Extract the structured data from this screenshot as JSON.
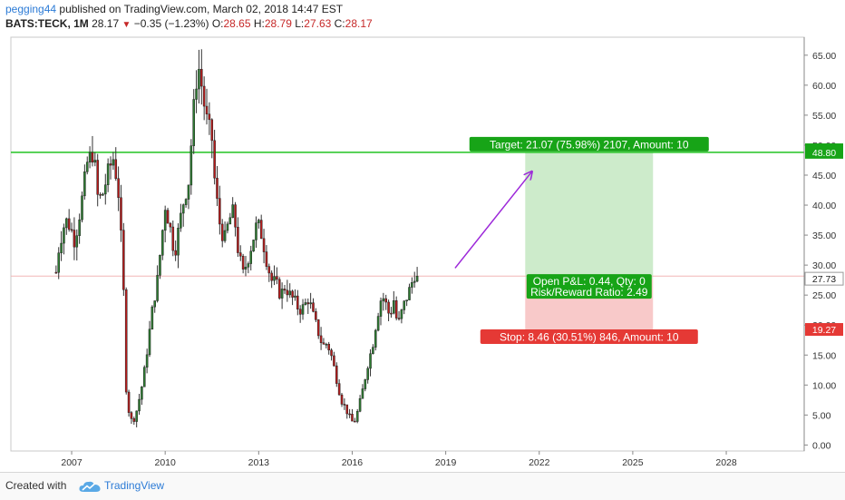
{
  "header": {
    "author": "pegging44",
    "published": "published on TradingView.com, March 02, 2018 14:47 EST",
    "symbol": "BATS:TECK, 1M",
    "last": "28.17",
    "change": "−0.35 (−1.23%)",
    "open_label": "O:",
    "open": "28.65",
    "high_label": "H:",
    "high": "28.79",
    "low_label": "L:",
    "low": "27.63",
    "close_label": "C:",
    "close": "28.17"
  },
  "colors": {
    "up": "#2e7d32",
    "down": "#b71c1c",
    "target_line": "#22c322",
    "target_zone": "#cdebcb",
    "stop_zone": "#f8c9c9",
    "current_line": "#f2b5b5",
    "arrow": "#9c27d9",
    "badge_green": "#17a417",
    "badge_red": "#e53935",
    "accent": "#2c7bd6"
  },
  "chart_data": {
    "type": "candlestick",
    "x_ticks": [
      "2007",
      "2010",
      "2013",
      "2016",
      "2019",
      "2022",
      "2025",
      "2028"
    ],
    "y_ticks": [
      "0.00",
      "5.00",
      "10.00",
      "15.00",
      "20.00",
      "25.00",
      "30.00",
      "35.00",
      "40.00",
      "45.00",
      "50.00",
      "55.00",
      "60.00",
      "65.00"
    ],
    "ylim": [
      -1,
      68
    ],
    "xlim": [
      2005.05,
      2030.5
    ],
    "price_badges": [
      {
        "value": "49.23",
        "y": 49.23,
        "kind": "green"
      },
      {
        "value": "48.80",
        "y": 48.8,
        "kind": "green"
      },
      {
        "value": "27.73",
        "y": 27.73,
        "kind": "current"
      },
      {
        "value": "19.27",
        "y": 19.27,
        "kind": "red"
      }
    ],
    "horizontal_line": 48.8,
    "current_price": 28.17,
    "position": {
      "x_start": 2021.55,
      "x_end": 2025.65,
      "entry": 27.73,
      "target": 48.8,
      "stop": 19.27,
      "target_label": "Target: 21.07 (75.98%) 2107, Amount: 10",
      "stop_label": "Stop: 8.46 (30.51%) 846, Amount: 10",
      "pnl_label": "Open P&L: 0.44, Qty: 0",
      "rr_label": "Risk/Reward Ratio: 2.49"
    },
    "arrow": {
      "from": [
        2019.3,
        29.5
      ],
      "to": [
        2021.75,
        45.5
      ]
    },
    "anchors": [
      [
        2006.5,
        28.8
      ],
      [
        2006.6,
        33.5
      ],
      [
        2006.8,
        37.5
      ],
      [
        2006.95,
        36.5
      ],
      [
        2007.1,
        34.0
      ],
      [
        2007.35,
        41.5
      ],
      [
        2007.5,
        47.0
      ],
      [
        2007.7,
        49.0
      ],
      [
        2007.85,
        40.5
      ],
      [
        2008.0,
        42.0
      ],
      [
        2008.2,
        46.0
      ],
      [
        2008.35,
        48.0
      ],
      [
        2008.5,
        42.0
      ],
      [
        2008.65,
        28.5
      ],
      [
        2008.75,
        9.5
      ],
      [
        2008.85,
        5.0
      ],
      [
        2008.95,
        3.7
      ],
      [
        2009.1,
        6.0
      ],
      [
        2009.3,
        11.0
      ],
      [
        2009.45,
        17.0
      ],
      [
        2009.6,
        23.0
      ],
      [
        2009.75,
        27.5
      ],
      [
        2009.9,
        35.0
      ],
      [
        2010.0,
        40.0
      ],
      [
        2010.15,
        36.5
      ],
      [
        2010.3,
        32.0
      ],
      [
        2010.45,
        36.5
      ],
      [
        2010.6,
        41.0
      ],
      [
        2010.75,
        44.0
      ],
      [
        2010.9,
        55.0
      ],
      [
        2011.0,
        61.0
      ],
      [
        2011.1,
        63.0
      ],
      [
        2011.2,
        58.5
      ],
      [
        2011.35,
        53.5
      ],
      [
        2011.5,
        51.0
      ],
      [
        2011.6,
        43.0
      ],
      [
        2011.75,
        37.0
      ],
      [
        2011.9,
        34.0
      ],
      [
        2012.05,
        37.5
      ],
      [
        2012.2,
        39.0
      ],
      [
        2012.35,
        32.0
      ],
      [
        2012.5,
        28.5
      ],
      [
        2012.65,
        31.0
      ],
      [
        2012.8,
        34.0
      ],
      [
        2012.95,
        37.0
      ],
      [
        2013.1,
        35.0
      ],
      [
        2013.25,
        31.0
      ],
      [
        2013.4,
        27.5
      ],
      [
        2013.55,
        27.0
      ],
      [
        2013.7,
        25.0
      ],
      [
        2013.85,
        26.5
      ],
      [
        2014.0,
        25.0
      ],
      [
        2014.15,
        24.0
      ],
      [
        2014.3,
        22.5
      ],
      [
        2014.45,
        23.0
      ],
      [
        2014.6,
        24.5
      ],
      [
        2014.75,
        21.5
      ],
      [
        2014.9,
        19.0
      ],
      [
        2015.05,
        16.5
      ],
      [
        2015.2,
        17.0
      ],
      [
        2015.35,
        14.5
      ],
      [
        2015.5,
        11.0
      ],
      [
        2015.65,
        7.5
      ],
      [
        2015.8,
        6.0
      ],
      [
        2015.95,
        4.2
      ],
      [
        2016.05,
        3.6
      ],
      [
        2016.2,
        6.0
      ],
      [
        2016.35,
        9.5
      ],
      [
        2016.5,
        13.5
      ],
      [
        2016.65,
        16.5
      ],
      [
        2016.8,
        21.5
      ],
      [
        2016.95,
        25.0
      ],
      [
        2017.05,
        24.0
      ],
      [
        2017.2,
        21.5
      ],
      [
        2017.35,
        24.5
      ],
      [
        2017.45,
        19.5
      ],
      [
        2017.55,
        21.5
      ],
      [
        2017.7,
        24.0
      ],
      [
        2017.85,
        26.0
      ],
      [
        2018.0,
        28.5
      ],
      [
        2018.15,
        28.17
      ]
    ]
  },
  "footer": {
    "created_with": "Created with",
    "brand": "TradingView"
  }
}
